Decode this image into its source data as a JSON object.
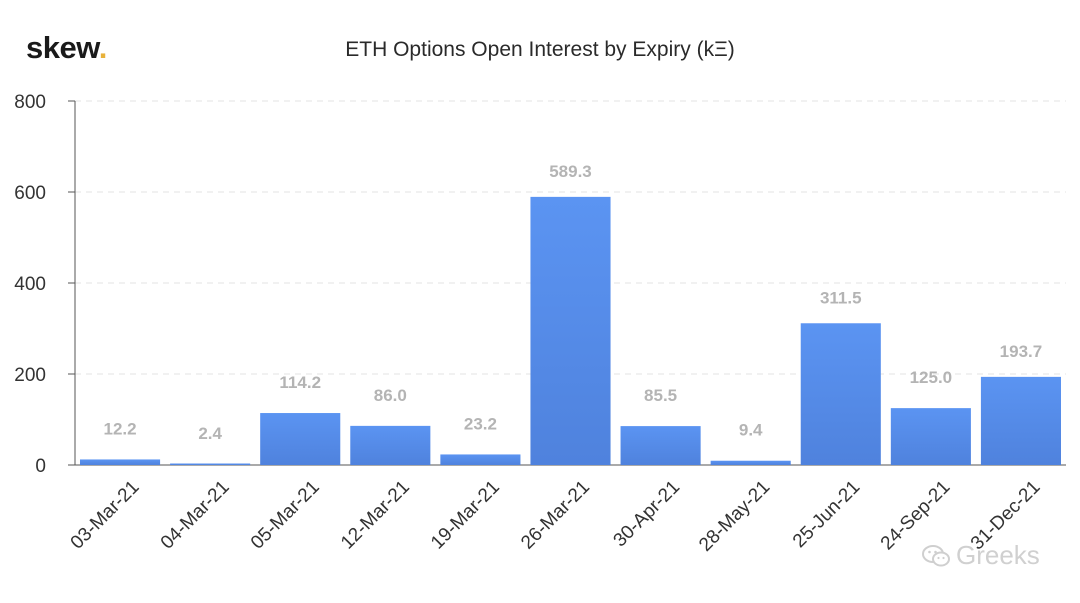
{
  "brand": {
    "name": "skew",
    "dot": ".",
    "dot_color": "#e8b23a"
  },
  "watermark": {
    "text": "Greeks",
    "icon": "wechat-icon"
  },
  "chart_data": {
    "type": "bar",
    "title": "ETH Options Open Interest by Expiry (kΞ)",
    "categories": [
      "03-Mar-21",
      "04-Mar-21",
      "05-Mar-21",
      "12-Mar-21",
      "19-Mar-21",
      "26-Mar-21",
      "30-Apr-21",
      "28-May-21",
      "25-Jun-21",
      "24-Sep-21",
      "31-Dec-21"
    ],
    "values": [
      12.2,
      2.4,
      114.2,
      86.0,
      23.2,
      589.3,
      85.5,
      9.4,
      311.5,
      125.0,
      193.7
    ],
    "data_labels": [
      "12.2",
      "2.4",
      "114.2",
      "86.0",
      "23.2",
      "589.3",
      "85.5",
      "9.4",
      "311.5",
      "125.0",
      "193.7"
    ],
    "ylim": [
      0,
      800
    ],
    "yticks": [
      0,
      200,
      400,
      600,
      800
    ],
    "grid": true,
    "bar_color_top": "#5b94f2",
    "bar_color_bottom": "#4f82dd"
  }
}
